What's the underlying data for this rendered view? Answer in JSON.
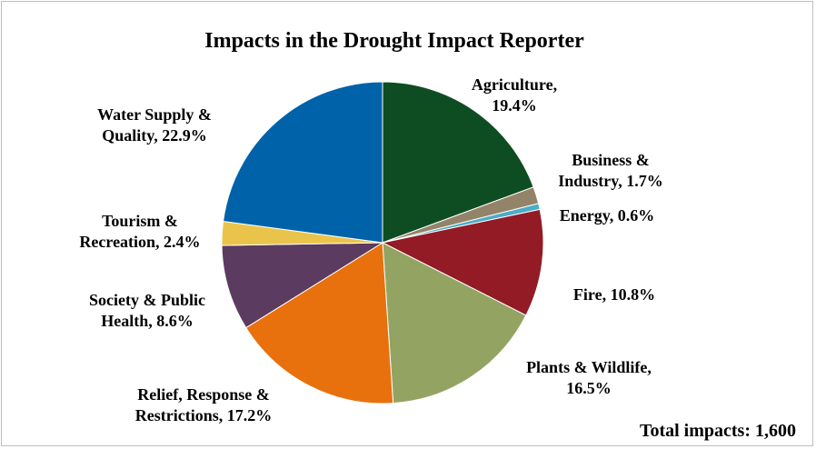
{
  "chart_data": {
    "type": "pie",
    "title": "Impacts in the Drought Impact Reporter",
    "total_label": "Total impacts: 1,600",
    "slices": [
      {
        "name": "Agriculture",
        "value": 19.4,
        "label_lines": [
          "Agriculture,",
          "19.4%"
        ],
        "color": "#0e4d22"
      },
      {
        "name": "Business & Industry",
        "value": 1.7,
        "label_lines": [
          "Business &",
          "Industry, 1.7%"
        ],
        "color": "#938368"
      },
      {
        "name": "Energy",
        "value": 0.6,
        "label_lines": [
          "Energy, 0.6%"
        ],
        "color": "#4bacc6"
      },
      {
        "name": "Fire",
        "value": 10.8,
        "label_lines": [
          "Fire, 10.8%"
        ],
        "color": "#921b25"
      },
      {
        "name": "Plants & Wildlife",
        "value": 16.5,
        "label_lines": [
          "Plants & Wildlife,",
          "16.5%"
        ],
        "color": "#93a462"
      },
      {
        "name": "Relief, Response & Restrictions",
        "value": 17.2,
        "label_lines": [
          "Relief, Response &",
          "Restrictions, 17.2%"
        ],
        "color": "#e8710e"
      },
      {
        "name": "Society & Public Health",
        "value": 8.6,
        "label_lines": [
          "Society & Public",
          "Health, 8.6%"
        ],
        "color": "#5b3b5f"
      },
      {
        "name": "Tourism & Recreation",
        "value": 2.4,
        "label_lines": [
          "Tourism &",
          "Recreation, 2.4%"
        ],
        "color": "#eac44a"
      },
      {
        "name": "Water Supply & Quality",
        "value": 22.9,
        "label_lines": [
          "Water Supply &",
          "Quality, 22.9%"
        ],
        "color": "#0062a8"
      }
    ]
  }
}
